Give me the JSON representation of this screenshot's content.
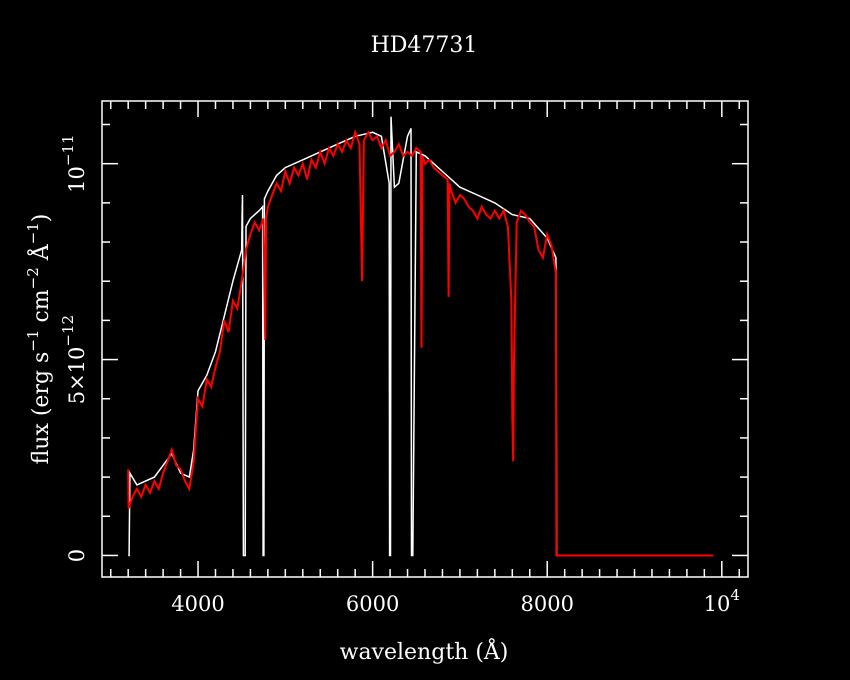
{
  "chart_data": {
    "type": "line",
    "title": "HD47731",
    "xlabel": "wavelength (Å)",
    "ylabel_parts": [
      "flux (erg s",
      "−1",
      " cm",
      "−2",
      " Å",
      "−1",
      ")"
    ],
    "xlim": [
      2900,
      10300
    ],
    "ylim": [
      -5.5e-13,
      1.16e-11
    ],
    "x_ticks": [
      {
        "value": 4000,
        "label": "4000"
      },
      {
        "value": 6000,
        "label": "6000"
      },
      {
        "value": 8000,
        "label": "8000"
      },
      {
        "value": 10000,
        "label": "10",
        "sup": "4"
      }
    ],
    "x_minor_step": 200,
    "y_ticks": [
      {
        "value": 0,
        "label": "0"
      },
      {
        "value": 5e-12,
        "label": "5×10",
        "sup": "−12"
      },
      {
        "value": 1e-11,
        "label": "10",
        "sup": "−11"
      }
    ],
    "y_minor_step": 1e-12,
    "grid": false,
    "series": [
      {
        "color": "#ffffff",
        "x": [
          3200,
          3210,
          3220,
          3300,
          3500,
          3700,
          3800,
          3900,
          3950,
          4000,
          4100,
          4200,
          4300,
          4400,
          4500,
          4505,
          4510,
          4520,
          4530,
          4540,
          4550,
          4600,
          4700,
          4740,
          4745,
          4750,
          4755,
          4760,
          4800,
          4900,
          5000,
          5200,
          5400,
          5600,
          5800,
          6000,
          6100,
          6190,
          6195,
          6200,
          6205,
          6210,
          6250,
          6300,
          6400,
          6440,
          6445,
          6450,
          6460,
          6500,
          6600,
          6800,
          7000,
          7200,
          7400,
          7600,
          7800,
          8000,
          8100,
          8110,
          9900
        ],
        "y": [
          0,
          0,
          2.1e-12,
          1.8e-12,
          2e-12,
          2.6e-12,
          2.1e-12,
          2e-12,
          2.7e-12,
          4.2e-12,
          4.6e-12,
          5.2e-12,
          6.1e-12,
          7e-12,
          7.8e-12,
          8.7e-12,
          9.2e-12,
          0,
          0,
          0,
          8.4e-12,
          8.6e-12,
          8.8e-12,
          8.9e-12,
          0,
          0,
          0,
          9.1e-12,
          9.3e-12,
          9.7e-12,
          9.9e-12,
          1.01e-11,
          1.03e-11,
          1.05e-11,
          1.07e-11,
          1.08e-11,
          1.07e-11,
          9.5e-12,
          0,
          0,
          0,
          1.12e-11,
          9.4e-12,
          9.5e-12,
          1.07e-11,
          1.09e-11,
          0,
          0,
          0,
          1.03e-11,
          1.02e-11,
          9.8e-12,
          9.4e-12,
          9.2e-12,
          9e-12,
          8.7e-12,
          8.6e-12,
          8.1e-12,
          7.6e-12,
          0,
          0
        ]
      },
      {
        "color": "#ff0000",
        "x": [
          3200,
          3205,
          3250,
          3300,
          3350,
          3400,
          3450,
          3500,
          3550,
          3600,
          3650,
          3700,
          3750,
          3800,
          3850,
          3900,
          3950,
          4000,
          4050,
          4100,
          4150,
          4200,
          4250,
          4300,
          4350,
          4400,
          4450,
          4500,
          4550,
          4600,
          4650,
          4700,
          4750,
          4770,
          4780,
          4800,
          4850,
          4900,
          4950,
          5000,
          5050,
          5100,
          5150,
          5200,
          5250,
          5300,
          5350,
          5400,
          5450,
          5500,
          5550,
          5600,
          5650,
          5700,
          5750,
          5800,
          5850,
          5880,
          5900,
          5950,
          6000,
          6050,
          6100,
          6150,
          6200,
          6250,
          6300,
          6350,
          6400,
          6450,
          6500,
          6550,
          6560,
          6570,
          6600,
          6650,
          6700,
          6750,
          6800,
          6860,
          6870,
          6880,
          6900,
          6950,
          7000,
          7050,
          7100,
          7150,
          7200,
          7250,
          7300,
          7350,
          7400,
          7450,
          7500,
          7550,
          7590,
          7600,
          7610,
          7620,
          7650,
          7700,
          7750,
          7800,
          7850,
          7900,
          7950,
          8000,
          8050,
          8100,
          8105,
          9900
        ],
        "y": [
          2.2e-12,
          1.2e-12,
          1.5e-12,
          1.7e-12,
          1.5e-12,
          1.8e-12,
          1.6e-12,
          1.9e-12,
          1.7e-12,
          2.1e-12,
          2.4e-12,
          2.7e-12,
          2.3e-12,
          2.2e-12,
          1.9e-12,
          1.7e-12,
          2.4e-12,
          4e-12,
          3.8e-12,
          4.5e-12,
          4.3e-12,
          4.8e-12,
          5.2e-12,
          6e-12,
          5.7e-12,
          6.5e-12,
          6.3e-12,
          7e-12,
          7.8e-12,
          8.2e-12,
          8.5e-12,
          8.3e-12,
          8.6e-12,
          5.5e-12,
          8.6e-12,
          8.9e-12,
          9.2e-12,
          9.5e-12,
          9.3e-12,
          9.8e-12,
          9.5e-12,
          9.9e-12,
          9.7e-12,
          1e-11,
          9.6e-12,
          1.01e-11,
          9.9e-12,
          1.03e-11,
          1e-11,
          1.04e-11,
          1.02e-11,
          1.05e-11,
          1.03e-11,
          1.06e-11,
          1.04e-11,
          1.08e-11,
          1.05e-11,
          7e-12,
          1.06e-11,
          1.08e-11,
          1.06e-11,
          1.07e-11,
          1.04e-11,
          1.06e-11,
          1.02e-11,
          1.03e-11,
          1.05e-11,
          1.02e-11,
          1.03e-11,
          1.02e-11,
          1.04e-11,
          1.03e-11,
          5.3e-12,
          1.02e-11,
          1e-11,
          1.01e-11,
          9.9e-12,
          9.8e-12,
          9.7e-12,
          9.6e-12,
          6.6e-12,
          9.5e-12,
          9.3e-12,
          9e-12,
          9.2e-12,
          9.1e-12,
          8.9e-12,
          8.8e-12,
          8.6e-12,
          8.9e-12,
          8.7e-12,
          8.6e-12,
          8.8e-12,
          8.6e-12,
          8.8e-12,
          8.4e-12,
          6.5e-12,
          3.6e-12,
          2.4e-12,
          5e-12,
          8.5e-12,
          8.8e-12,
          8.7e-12,
          8.5e-12,
          8.4e-12,
          7.8e-12,
          7.6e-12,
          8.2e-12,
          7.9e-12,
          7.2e-12,
          0,
          0
        ]
      }
    ]
  }
}
